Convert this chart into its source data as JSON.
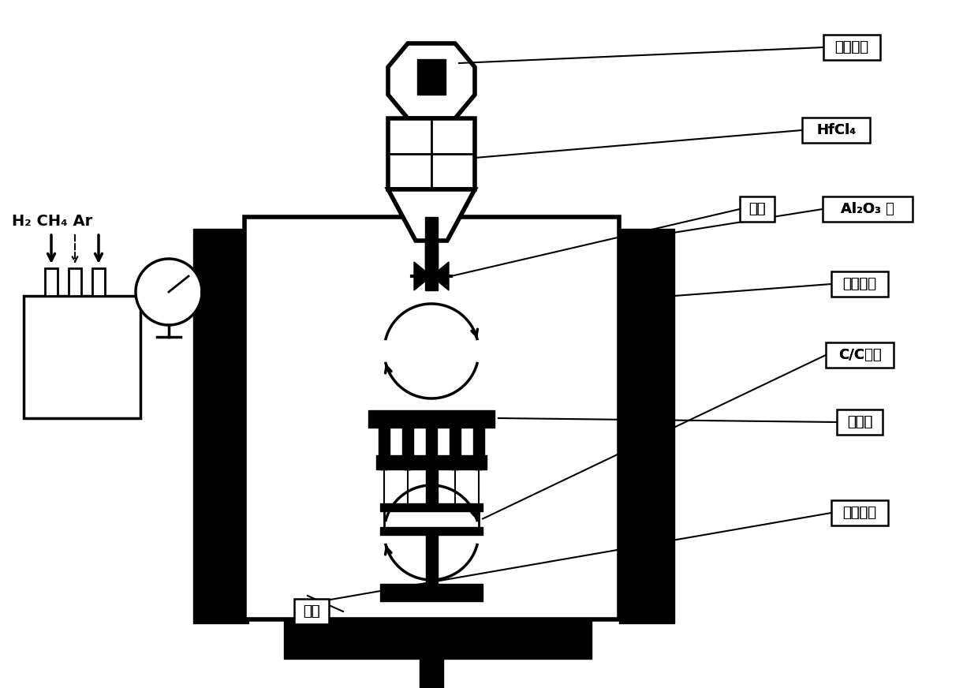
{
  "bg_color": "#ffffff",
  "line_color": "#000000",
  "labels": {
    "song_liao_dianji": "送料电机",
    "HfCl4": "HfCl₄",
    "fa_men": "阀门",
    "Al2O3_guan": "Al₂O₃ 管",
    "nai_huo_cai_liao": "耐火材料",
    "cc_jiti": "C/C基体",
    "fa_re_ti": "发热体",
    "shi_mo_mu_ju": "石墨模具",
    "gui_fen": "硅粉",
    "gas_label": "H₂ CH₄ Ar"
  },
  "figsize": [
    12.4,
    8.72
  ],
  "dpi": 100
}
